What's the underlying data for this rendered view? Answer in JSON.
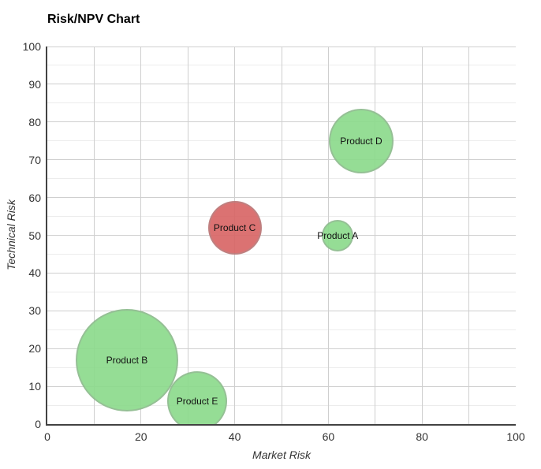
{
  "title": "Risk/NPV Chart",
  "chart_data": {
    "type": "scatter",
    "variant": "bubble",
    "title": "Risk/NPV Chart",
    "xlabel": "Market Risk",
    "ylabel": "Technical Risk",
    "xlim": [
      0,
      100
    ],
    "ylim": [
      0,
      100
    ],
    "x_ticks": [
      0,
      20,
      40,
      60,
      80,
      100
    ],
    "y_ticks": [
      0,
      10,
      20,
      30,
      40,
      50,
      60,
      70,
      80,
      90,
      100
    ],
    "grid": true,
    "x_grid_step": 10,
    "y_grid_major_step": 10,
    "y_grid_minor_step": 5,
    "legend": "none",
    "points": [
      {
        "label": "Product A",
        "x": 62,
        "y": 50,
        "radius_px": 20,
        "color_key": "green"
      },
      {
        "label": "Product B",
        "x": 17,
        "y": 17,
        "radius_px": 65,
        "color_key": "green"
      },
      {
        "label": "Product C",
        "x": 40,
        "y": 52,
        "radius_px": 34,
        "color_key": "red"
      },
      {
        "label": "Product D",
        "x": 67,
        "y": 75,
        "radius_px": 41,
        "color_key": "green"
      },
      {
        "label": "Product E",
        "x": 32,
        "y": 6,
        "radius_px": 38,
        "color_key": "green"
      }
    ],
    "colors": {
      "green": "rgba(138,217,138,0.9)",
      "red": "rgba(215,99,99,0.9)",
      "grid_major": "#cfcfcf",
      "grid_minor": "#ececec",
      "axis_line": "#424242",
      "tick_text": "#333333",
      "label_text": "#111111"
    }
  }
}
